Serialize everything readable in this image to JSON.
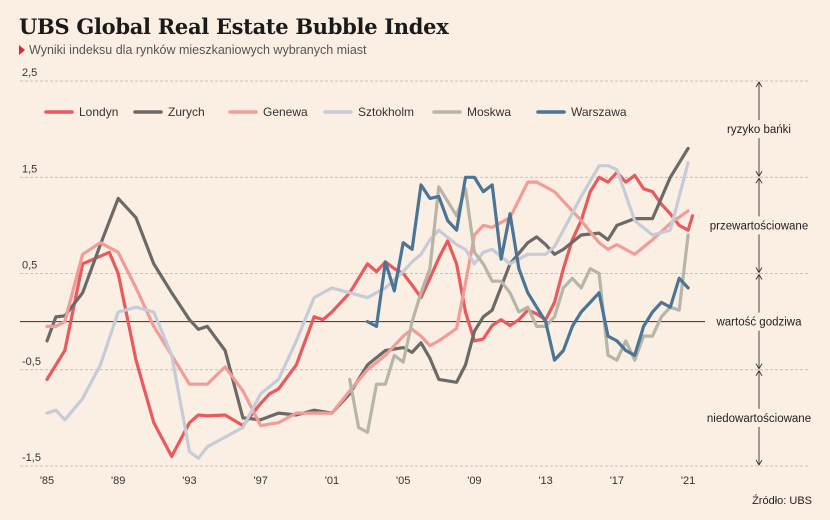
{
  "title": "UBS Global Real Estate Bubble Index",
  "subtitle": "Wyniki indeksu dla rynków mieszkaniowych wybranych miast",
  "source": "Źródło: UBS",
  "chart_data": {
    "type": "line",
    "x_ticks": [
      "'85",
      "'89",
      "'93",
      "'97",
      "'01",
      "'05",
      "'09",
      "'13",
      "'17",
      "'21"
    ],
    "x_tick_years": [
      1985,
      1989,
      1993,
      1997,
      2001,
      2005,
      2009,
      2013,
      2017,
      2021
    ],
    "xlim": [
      1985,
      2021.5
    ],
    "ylim": [
      -1.5,
      2.5
    ],
    "y_ticks": [
      2.5,
      1.5,
      0.5,
      -0.5,
      -1.5
    ],
    "y_tick_labels": [
      "2,5",
      "1,5",
      "0,5",
      "-0,5",
      "-1,5"
    ],
    "zero_line": 0,
    "zones": [
      {
        "label": "ryzyko bańki",
        "from": 1.5,
        "to": 2.5
      },
      {
        "label": "przewartościowane",
        "from": 0.5,
        "to": 1.5
      },
      {
        "label": "wartość godziwa",
        "from": -0.5,
        "to": 0.5
      },
      {
        "label": "niedowartościowane",
        "from": -1.5,
        "to": -0.5
      }
    ],
    "legend_position": "top",
    "series": [
      {
        "name": "Londyn",
        "color": "#ea5a5c",
        "x": [
          1985,
          1986,
          1987,
          1988,
          1988.5,
          1989,
          1990,
          1991,
          1992,
          1993,
          1993.5,
          1994,
          1995,
          1996,
          1997,
          1997.5,
          1998,
          1999,
          2000,
          2000.5,
          2001,
          2002,
          2003,
          2003.5,
          2004,
          2004.5,
          2005,
          2005.5,
          2006,
          2006.5,
          2007,
          2007.5,
          2008,
          2008.5,
          2009,
          2009.5,
          2010,
          2010.5,
          2011,
          2011.5,
          2012,
          2012.5,
          2013,
          2013.5,
          2014,
          2014.5,
          2015,
          2015.5,
          2016,
          2016.5,
          2017,
          2017.5,
          2018,
          2018.5,
          2019,
          2019.5,
          2020,
          2020.5,
          2021,
          2021.25
        ],
        "y": [
          -0.6,
          -0.3,
          0.6,
          0.68,
          0.72,
          0.5,
          -0.4,
          -1.05,
          -1.4,
          -1.05,
          -0.97,
          -0.98,
          -0.97,
          -1.08,
          -0.85,
          -0.75,
          -0.7,
          -0.45,
          0.05,
          0.02,
          0.1,
          0.3,
          0.6,
          0.52,
          0.62,
          0.55,
          0.5,
          0.38,
          0.25,
          0.45,
          0.66,
          0.84,
          0.6,
          0.1,
          -0.2,
          -0.18,
          -0.04,
          0.02,
          -0.04,
          0.02,
          0.12,
          0.08,
          0.02,
          0.2,
          0.55,
          0.85,
          1.05,
          1.35,
          1.5,
          1.45,
          1.55,
          1.45,
          1.52,
          1.38,
          1.35,
          1.22,
          1.12,
          1.0,
          0.95,
          1.1
        ]
      },
      {
        "name": "Zurych",
        "color": "#6c6a67",
        "x": [
          1985,
          1985.5,
          1986,
          1987,
          1988,
          1989,
          1990,
          1991,
          1992,
          1993,
          1993.5,
          1994,
          1995,
          1996,
          1997,
          1998,
          1999,
          2000,
          2001,
          2002,
          2003,
          2004,
          2005,
          2005.5,
          2006,
          2006.5,
          2007,
          2008,
          2008.5,
          2009,
          2009.5,
          2010,
          2011,
          2012,
          2012.5,
          2013,
          2013.5,
          2014,
          2015,
          2016,
          2016.5,
          2017,
          2018,
          2019,
          2020,
          2021
        ],
        "y": [
          -0.2,
          0.05,
          0.06,
          0.3,
          0.8,
          1.28,
          1.08,
          0.6,
          0.3,
          0.02,
          -0.08,
          -0.05,
          -0.3,
          -1.0,
          -1.02,
          -0.95,
          -0.97,
          -0.92,
          -0.95,
          -0.75,
          -0.45,
          -0.3,
          -0.27,
          -0.32,
          -0.22,
          -0.38,
          -0.6,
          -0.63,
          -0.45,
          -0.1,
          0.05,
          0.12,
          0.6,
          0.82,
          0.88,
          0.8,
          0.7,
          0.75,
          0.9,
          0.92,
          0.85,
          1.0,
          1.07,
          1.07,
          1.5,
          1.8
        ]
      },
      {
        "name": "Genewa",
        "color": "#f29c98",
        "x": [
          1985,
          1985.5,
          1986,
          1987,
          1988,
          1989,
          1990,
          1991,
          1992,
          1993,
          1994,
          1995,
          1996,
          1997,
          1998,
          1999,
          2000,
          2001,
          2002,
          2003,
          2004,
          2005,
          2005.5,
          2006,
          2006.5,
          2007,
          2008,
          2008.5,
          2009,
          2009.5,
          2010,
          2011,
          2012,
          2012.5,
          2013,
          2013.5,
          2014,
          2015,
          2016,
          2016.5,
          2017,
          2018,
          2019,
          2020,
          2021
        ],
        "y": [
          -0.05,
          -0.05,
          0.0,
          0.7,
          0.82,
          0.72,
          0.35,
          -0.05,
          -0.35,
          -0.65,
          -0.65,
          -0.47,
          -0.72,
          -1.08,
          -1.05,
          -0.95,
          -0.95,
          -0.95,
          -0.72,
          -0.5,
          -0.35,
          -0.15,
          -0.08,
          -0.15,
          -0.25,
          -0.2,
          -0.07,
          0.4,
          0.9,
          1.0,
          0.98,
          1.08,
          1.45,
          1.45,
          1.4,
          1.35,
          1.25,
          1.05,
          0.82,
          0.75,
          0.8,
          0.7,
          0.85,
          1.02,
          1.15
        ]
      },
      {
        "name": "Sztokholm",
        "color": "#c6cbd8",
        "x": [
          1985,
          1985.5,
          1986,
          1987,
          1988,
          1989,
          1990,
          1991,
          1992,
          1993,
          1993.5,
          1994,
          1995,
          1996,
          1997,
          1998,
          1999,
          2000,
          2001,
          2002,
          2003,
          2004,
          2005,
          2005.5,
          2006,
          2006.5,
          2007,
          2008,
          2008.5,
          2009,
          2009.5,
          2010,
          2011,
          2012,
          2013,
          2013.5,
          2014,
          2015,
          2016,
          2016.5,
          2017,
          2018,
          2019,
          2020,
          2021
        ],
        "y": [
          -0.95,
          -0.92,
          -1.02,
          -0.8,
          -0.45,
          0.1,
          0.15,
          0.1,
          -0.35,
          -1.35,
          -1.42,
          -1.3,
          -1.2,
          -1.1,
          -0.75,
          -0.6,
          -0.2,
          0.25,
          0.35,
          0.3,
          0.25,
          0.35,
          0.52,
          0.62,
          0.7,
          0.85,
          0.95,
          0.8,
          0.75,
          0.6,
          0.72,
          0.75,
          0.6,
          0.7,
          0.7,
          0.78,
          0.95,
          1.3,
          1.62,
          1.62,
          1.58,
          1.05,
          0.9,
          0.95,
          1.65
        ]
      },
      {
        "name": "Moskwa",
        "color": "#b6b5a8",
        "x": [
          2002,
          2002.5,
          2003,
          2003.5,
          2004,
          2004.5,
          2005,
          2005.5,
          2006,
          2006.5,
          2007,
          2007.5,
          2008,
          2008.5,
          2009,
          2009.5,
          2010,
          2010.5,
          2011,
          2011.5,
          2012,
          2012.5,
          2013,
          2013.5,
          2014,
          2014.5,
          2015,
          2015.5,
          2016,
          2016.5,
          2017,
          2017.5,
          2018,
          2018.5,
          2019,
          2019.5,
          2020,
          2020.5,
          2021
        ],
        "y": [
          -0.6,
          -1.1,
          -1.15,
          -0.65,
          -0.65,
          -0.35,
          -0.42,
          0.0,
          0.3,
          0.55,
          1.4,
          1.25,
          1.1,
          1.38,
          0.72,
          0.6,
          0.42,
          0.42,
          0.3,
          0.1,
          0.15,
          -0.05,
          -0.05,
          0.05,
          0.35,
          0.45,
          0.35,
          0.55,
          0.5,
          -0.35,
          -0.4,
          -0.2,
          -0.4,
          -0.15,
          -0.15,
          0.05,
          0.15,
          0.12,
          0.9
        ]
      },
      {
        "name": "Warszawa",
        "color": "#4a7595",
        "x": [
          2003,
          2003.5,
          2004,
          2004.5,
          2005,
          2005.5,
          2006,
          2006.5,
          2007,
          2007.5,
          2008,
          2008.5,
          2009,
          2009.5,
          2010,
          2010.5,
          2011,
          2011.5,
          2012,
          2012.5,
          2013,
          2013.5,
          2014,
          2014.5,
          2015,
          2015.5,
          2016,
          2016.5,
          2017,
          2017.5,
          2018,
          2018.5,
          2019,
          2019.5,
          2020,
          2020.5,
          2021
        ],
        "y": [
          0.0,
          -0.05,
          0.62,
          0.32,
          0.82,
          0.75,
          1.42,
          1.28,
          1.3,
          1.05,
          0.95,
          1.5,
          1.5,
          1.35,
          1.42,
          0.65,
          1.12,
          0.55,
          0.3,
          0.15,
          0.0,
          -0.4,
          -0.3,
          -0.05,
          0.1,
          0.2,
          0.3,
          -0.15,
          -0.2,
          -0.3,
          -0.35,
          -0.05,
          0.1,
          0.2,
          0.15,
          0.45,
          0.35
        ]
      }
    ]
  }
}
